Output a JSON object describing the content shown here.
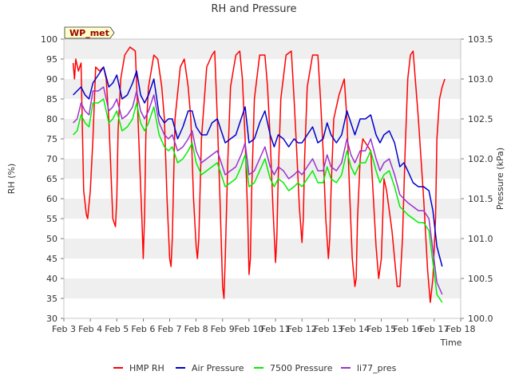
{
  "chart_data": {
    "type": "line",
    "title": "RH and Pressure",
    "xlabel": "Time",
    "ylabel_left": "RH (%)",
    "ylabel_right": "Pressure (kPa)",
    "badge": "WP_met",
    "x_ticks": [
      "Feb 3",
      "Feb 4",
      "Feb 5",
      "Feb 6",
      "Feb 7",
      "Feb 8",
      "Feb 9",
      "Feb 10",
      "Feb 11",
      "Feb 12",
      "Feb 13",
      "Feb 14",
      "Feb 15",
      "Feb 16",
      "Feb 17",
      "Feb 18"
    ],
    "xlim": [
      3,
      18
    ],
    "ylim_left": [
      30,
      100
    ],
    "yticks_left": [
      30,
      35,
      40,
      45,
      50,
      55,
      60,
      65,
      70,
      75,
      80,
      85,
      90,
      95,
      100
    ],
    "ylim_right": [
      100.0,
      103.5
    ],
    "yticks_right": [
      "100.0",
      "100.5",
      "101.0",
      "101.5",
      "102.0",
      "102.5",
      "103.0",
      "103.5"
    ],
    "grid": "horizontal bands",
    "legend_position": "bottom",
    "series": [
      {
        "name": "HMP RH",
        "axis": "left",
        "color": "#ff0000",
        "x": [
          3.35,
          3.4,
          3.45,
          3.55,
          3.65,
          3.75,
          3.85,
          3.9,
          4.0,
          4.1,
          4.2,
          4.35,
          4.5,
          4.6,
          4.7,
          4.85,
          4.95,
          5.0,
          5.05,
          5.15,
          5.3,
          5.5,
          5.7,
          5.85,
          5.95,
          6.0,
          6.05,
          6.1,
          6.2,
          6.4,
          6.55,
          6.7,
          6.8,
          6.9,
          7.0,
          7.05,
          7.1,
          7.2,
          7.4,
          7.55,
          7.7,
          7.8,
          7.9,
          8.0,
          8.05,
          8.1,
          8.2,
          8.4,
          8.6,
          8.7,
          8.8,
          8.9,
          9.0,
          9.05,
          9.1,
          9.2,
          9.3,
          9.5,
          9.65,
          9.75,
          9.85,
          9.95,
          10.0,
          10.05,
          10.1,
          10.2,
          10.4,
          10.6,
          10.7,
          10.8,
          10.9,
          11.0,
          11.05,
          11.1,
          11.2,
          11.4,
          11.6,
          11.7,
          11.8,
          11.9,
          12.0,
          12.05,
          12.1,
          12.2,
          12.4,
          12.6,
          12.7,
          12.8,
          12.9,
          13.0,
          13.05,
          13.1,
          13.2,
          13.4,
          13.6,
          13.7,
          13.8,
          13.9,
          14.0,
          14.05,
          14.1,
          14.2,
          14.3,
          14.5,
          14.6,
          14.7,
          14.8,
          14.9,
          15.0,
          15.05,
          15.1,
          15.2,
          15.4,
          15.6,
          15.7,
          15.8,
          15.9,
          16.0,
          16.1,
          16.2,
          16.4,
          16.6,
          16.75,
          16.85,
          16.95,
          17.05,
          17.1,
          17.2,
          17.3,
          17.4
        ],
        "values": [
          94,
          90,
          95,
          92,
          94,
          62,
          56,
          55,
          62,
          75,
          93,
          92,
          93,
          90,
          80,
          55,
          53,
          60,
          77,
          90,
          96,
          98,
          97,
          72,
          55,
          45,
          56,
          76,
          88,
          96,
          95,
          88,
          80,
          60,
          45,
          43,
          50,
          80,
          93,
          95,
          88,
          80,
          60,
          48,
          45,
          50,
          75,
          93,
          96,
          97,
          80,
          60,
          38,
          35,
          45,
          70,
          88,
          96,
          97,
          90,
          75,
          55,
          41,
          45,
          62,
          85,
          96,
          96,
          88,
          75,
          58,
          44,
          50,
          65,
          85,
          96,
          97,
          85,
          72,
          58,
          49,
          55,
          70,
          88,
          96,
          96,
          85,
          72,
          55,
          45,
          50,
          62,
          80,
          86,
          90,
          80,
          62,
          45,
          38,
          40,
          55,
          70,
          75,
          73,
          72,
          60,
          48,
          40,
          45,
          55,
          65,
          62,
          52,
          38,
          38,
          50,
          72,
          90,
          96,
          97,
          80,
          60,
          42,
          34,
          40,
          55,
          75,
          85,
          88,
          90
        ]
      },
      {
        "name": "Air Pressure",
        "axis": "right",
        "color": "#0000cc",
        "x": [
          3.35,
          3.5,
          3.65,
          3.8,
          3.95,
          4.1,
          4.3,
          4.5,
          4.7,
          4.85,
          5.0,
          5.2,
          5.4,
          5.6,
          5.75,
          5.9,
          6.05,
          6.2,
          6.4,
          6.6,
          6.8,
          6.95,
          7.1,
          7.3,
          7.5,
          7.7,
          7.85,
          8.0,
          8.2,
          8.4,
          8.6,
          8.8,
          8.95,
          9.1,
          9.3,
          9.5,
          9.7,
          9.85,
          10.0,
          10.2,
          10.4,
          10.6,
          10.8,
          10.95,
          11.1,
          11.3,
          11.5,
          11.7,
          11.85,
          12.0,
          12.2,
          12.4,
          12.6,
          12.8,
          12.95,
          13.1,
          13.3,
          13.5,
          13.7,
          13.85,
          14.0,
          14.2,
          14.4,
          14.6,
          14.8,
          14.95,
          15.1,
          15.3,
          15.5,
          15.7,
          15.85,
          16.0,
          16.2,
          16.4,
          16.6,
          16.8,
          16.95,
          17.1,
          17.3
        ],
        "values": [
          102.8,
          102.85,
          102.9,
          102.8,
          102.75,
          102.95,
          103.05,
          103.15,
          102.9,
          102.95,
          103.05,
          102.75,
          102.8,
          102.95,
          103.1,
          102.8,
          102.7,
          102.8,
          103.0,
          102.55,
          102.45,
          102.5,
          102.5,
          102.25,
          102.4,
          102.6,
          102.6,
          102.4,
          102.3,
          102.3,
          102.45,
          102.5,
          102.35,
          102.2,
          102.25,
          102.3,
          102.5,
          102.65,
          102.2,
          102.25,
          102.45,
          102.6,
          102.3,
          102.15,
          102.3,
          102.25,
          102.15,
          102.25,
          102.2,
          102.2,
          102.3,
          102.4,
          102.2,
          102.25,
          102.45,
          102.3,
          102.2,
          102.3,
          102.6,
          102.45,
          102.3,
          102.5,
          102.5,
          102.55,
          102.3,
          102.2,
          102.3,
          102.35,
          102.2,
          101.9,
          101.95,
          101.85,
          101.7,
          101.65,
          101.65,
          101.6,
          101.35,
          100.9,
          100.65
        ]
      },
      {
        "name": "7500 Pressure",
        "axis": "right",
        "color": "#00ee00",
        "x": [
          3.35,
          3.5,
          3.65,
          3.8,
          3.95,
          4.1,
          4.3,
          4.5,
          4.7,
          4.85,
          5.0,
          5.2,
          5.4,
          5.6,
          5.75,
          5.9,
          6.05,
          6.2,
          6.4,
          6.6,
          6.8,
          6.95,
          7.1,
          7.3,
          7.5,
          7.7,
          7.85,
          8.0,
          8.2,
          8.4,
          8.6,
          8.8,
          8.95,
          9.1,
          9.3,
          9.5,
          9.7,
          9.85,
          10.0,
          10.2,
          10.4,
          10.6,
          10.8,
          10.95,
          11.1,
          11.3,
          11.5,
          11.7,
          11.85,
          12.0,
          12.2,
          12.4,
          12.6,
          12.8,
          12.95,
          13.1,
          13.3,
          13.5,
          13.7,
          13.85,
          14.0,
          14.2,
          14.4,
          14.6,
          14.8,
          14.95,
          15.1,
          15.3,
          15.5,
          15.7,
          15.85,
          16.0,
          16.2,
          16.4,
          16.6,
          16.8,
          16.95,
          17.1,
          17.3
        ],
        "values": [
          102.3,
          102.35,
          102.55,
          102.45,
          102.4,
          102.7,
          102.7,
          102.75,
          102.45,
          102.5,
          102.6,
          102.35,
          102.4,
          102.5,
          102.7,
          102.45,
          102.35,
          102.45,
          102.65,
          102.3,
          102.15,
          102.1,
          102.15,
          101.95,
          102.0,
          102.1,
          102.2,
          101.95,
          101.8,
          101.85,
          101.9,
          101.95,
          101.8,
          101.65,
          101.7,
          101.75,
          101.9,
          102.05,
          101.65,
          101.7,
          101.85,
          102.0,
          101.75,
          101.65,
          101.75,
          101.7,
          101.6,
          101.65,
          101.7,
          101.65,
          101.75,
          101.85,
          101.7,
          101.7,
          101.9,
          101.75,
          101.7,
          101.8,
          102.1,
          101.9,
          101.8,
          101.95,
          101.95,
          102.1,
          101.85,
          101.7,
          101.8,
          101.85,
          101.65,
          101.4,
          101.35,
          101.3,
          101.25,
          101.2,
          101.2,
          101.1,
          100.7,
          100.3,
          100.2
        ]
      },
      {
        "name": "li77_pres",
        "axis": "right",
        "color": "#9933cc",
        "x": [
          3.35,
          3.5,
          3.65,
          3.8,
          3.95,
          4.1,
          4.3,
          4.5,
          4.7,
          4.85,
          5.0,
          5.2,
          5.4,
          5.6,
          5.75,
          5.9,
          6.05,
          6.2,
          6.4,
          6.6,
          6.8,
          6.95,
          7.1,
          7.3,
          7.5,
          7.7,
          7.85,
          8.0,
          8.2,
          8.4,
          8.6,
          8.8,
          8.95,
          9.1,
          9.3,
          9.5,
          9.7,
          9.85,
          10.0,
          10.2,
          10.4,
          10.6,
          10.8,
          10.95,
          11.1,
          11.3,
          11.5,
          11.7,
          11.85,
          12.0,
          12.2,
          12.4,
          12.6,
          12.8,
          12.95,
          13.1,
          13.3,
          13.5,
          13.7,
          13.85,
          14.0,
          14.2,
          14.4,
          14.6,
          14.8,
          14.95,
          15.1,
          15.3,
          15.5,
          15.7,
          15.85,
          16.0,
          16.2,
          16.4,
          16.6,
          16.8,
          16.95,
          17.1,
          17.3
        ],
        "values": [
          102.45,
          102.5,
          102.7,
          102.6,
          102.55,
          102.85,
          102.85,
          102.9,
          102.6,
          102.65,
          102.75,
          102.5,
          102.55,
          102.65,
          102.85,
          102.6,
          102.5,
          102.6,
          102.8,
          102.45,
          102.3,
          102.25,
          102.3,
          102.1,
          102.15,
          102.25,
          102.35,
          102.1,
          101.95,
          102.0,
          102.05,
          102.1,
          101.95,
          101.8,
          101.85,
          101.9,
          102.05,
          102.2,
          101.8,
          101.85,
          102.0,
          102.15,
          101.9,
          101.8,
          101.9,
          101.85,
          101.75,
          101.8,
          101.85,
          101.8,
          101.9,
          102.0,
          101.85,
          101.85,
          102.05,
          101.9,
          101.85,
          101.95,
          102.25,
          102.05,
          101.95,
          102.1,
          102.1,
          102.25,
          102.0,
          101.85,
          101.95,
          102.0,
          101.8,
          101.55,
          101.5,
          101.45,
          101.4,
          101.35,
          101.35,
          101.25,
          100.85,
          100.45,
          100.3
        ]
      }
    ]
  }
}
